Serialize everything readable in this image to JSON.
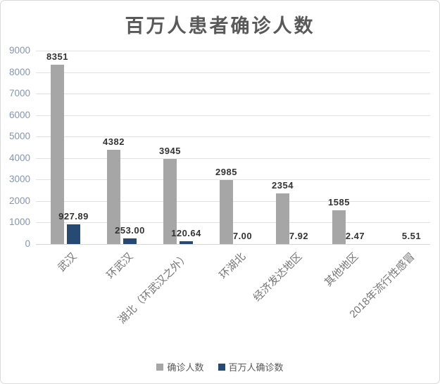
{
  "chart_data": {
    "type": "bar",
    "title": "百万人患者确诊人数",
    "categories": [
      "武汉",
      "环武汉",
      "湖北（环武汉之外）",
      "环湖北",
      "经济发达地区",
      "其他地区",
      "2018年流行性感冒"
    ],
    "series": [
      {
        "name": "确诊人数",
        "color": "#a6a6a6",
        "values": [
          8351,
          4382,
          3945,
          2985,
          2354,
          1585,
          null
        ],
        "labels": [
          "8351",
          "4382",
          "3945",
          "2985",
          "2354",
          "1585",
          ""
        ]
      },
      {
        "name": "百万人确诊数",
        "color": "#264a73",
        "values": [
          927.89,
          253.0,
          120.64,
          7.0,
          7.92,
          2.47,
          5.51
        ],
        "labels": [
          "927.89",
          "253.00",
          "120.64",
          "7.00",
          "7.92",
          "2.47",
          "5.51"
        ]
      }
    ],
    "ylabel": "",
    "xlabel": "",
    "ylim": [
      0,
      9000
    ],
    "ytick_step": 1000,
    "yticks": [
      "0",
      "1000",
      "2000",
      "3000",
      "4000",
      "5000",
      "6000",
      "7000",
      "8000",
      "9000"
    ],
    "grid": true,
    "legend_position": "bottom"
  },
  "colors": {
    "title": "#595959",
    "axis_labels": "#8496b0",
    "category_labels": "#757575",
    "data_labels": "#333333",
    "gridline": "#e2e2e2",
    "border": "#d9d9d9",
    "background": "#ffffff"
  }
}
